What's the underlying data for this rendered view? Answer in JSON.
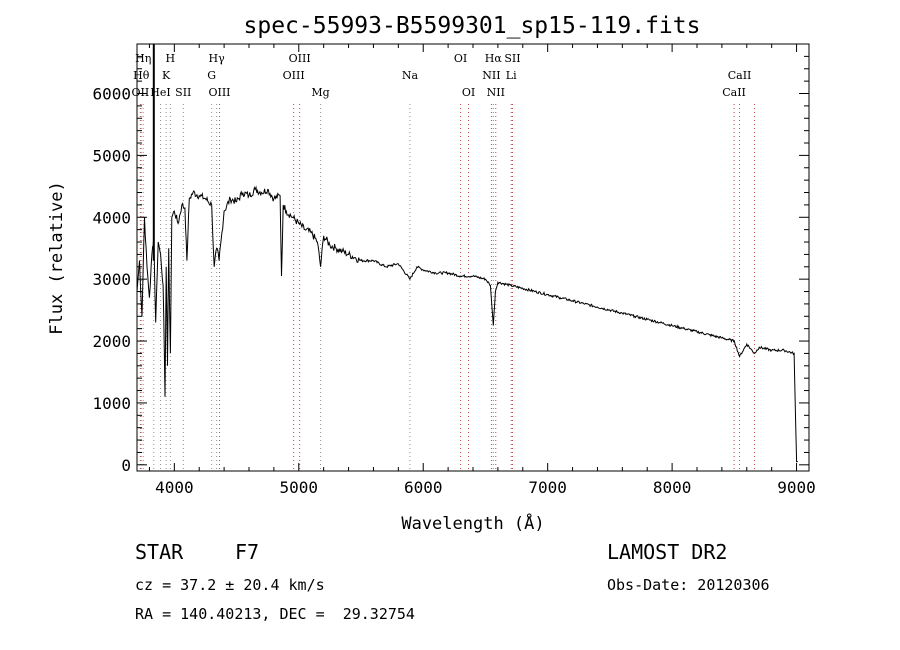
{
  "chart_data": {
    "type": "line",
    "title": "spec-55993-B5599301_sp15-119.fits",
    "xlabel": "Wavelength (Å)",
    "ylabel": "Flux (relative)",
    "xlim": [
      3700,
      9100
    ],
    "ylim": [
      -100,
      6800
    ],
    "xticks": [
      4000,
      5000,
      6000,
      7000,
      8000,
      9000
    ],
    "yticks": [
      0,
      1000,
      2000,
      3000,
      4000,
      5000,
      6000
    ],
    "grid": false,
    "series": [
      {
        "color": "#000000",
        "x": [
          3700,
          3720,
          3740,
          3760,
          3780,
          3800,
          3820,
          3835,
          3850,
          3870,
          3890,
          3910,
          3925,
          3935,
          3945,
          3955,
          3968,
          3980,
          4000,
          4030,
          4060,
          4085,
          4101,
          4120,
          4150,
          4200,
          4250,
          4300,
          4320,
          4340,
          4360,
          4400,
          4450,
          4500,
          4550,
          4600,
          4650,
          4700,
          4750,
          4800,
          4850,
          4861,
          4875,
          4900,
          4950,
          5000,
          5050,
          5100,
          5150,
          5175,
          5200,
          5250,
          5300,
          5350,
          5400,
          5450,
          5500,
          5600,
          5700,
          5800,
          5893,
          5950,
          6000,
          6100,
          6200,
          6300,
          6400,
          6500,
          6540,
          6563,
          6580,
          6600,
          6700,
          6800,
          6900,
          7000,
          7100,
          7200,
          7300,
          7400,
          7500,
          7600,
          7700,
          7800,
          7900,
          8000,
          8100,
          8200,
          8300,
          8400,
          8500,
          8542,
          8600,
          8662,
          8700,
          8800,
          8900,
          8980,
          9000,
          9010
        ],
        "y": [
          2800,
          3300,
          2400,
          4000,
          3200,
          2700,
          3400,
          3700,
          2300,
          3600,
          3400,
          2900,
          1100,
          3200,
          1600,
          3500,
          1800,
          4000,
          4100,
          3900,
          4200,
          4150,
          3300,
          4300,
          4400,
          4350,
          4300,
          4200,
          3200,
          3500,
          3300,
          4100,
          4300,
          4250,
          4400,
          4350,
          4450,
          4400,
          4450,
          4300,
          4350,
          3050,
          4200,
          4100,
          4000,
          3900,
          3800,
          3750,
          3600,
          3200,
          3700,
          3550,
          3500,
          3450,
          3400,
          3350,
          3300,
          3300,
          3200,
          3250,
          3000,
          3200,
          3150,
          3100,
          3100,
          3050,
          3050,
          3000,
          2900,
          2250,
          2800,
          2950,
          2900,
          2850,
          2800,
          2750,
          2700,
          2650,
          2600,
          2550,
          2500,
          2450,
          2400,
          2350,
          2300,
          2250,
          2200,
          2150,
          2100,
          2050,
          2000,
          1750,
          1950,
          1800,
          1900,
          1850,
          1850,
          1800,
          50,
          50
        ]
      }
    ],
    "line_marks": [
      {
        "wl": 3734,
        "label": "Hθ",
        "row": 2,
        "color": "#909090"
      },
      {
        "wl": 3727,
        "label": "OII",
        "row": 3,
        "color": "#cc4444"
      },
      {
        "wl": 3750,
        "label": "Hη",
        "row": 1,
        "color": "#909090"
      },
      {
        "wl": 3835,
        "label": "",
        "row": 0,
        "color": "#909090"
      },
      {
        "wl": 3889,
        "label": "HeI",
        "row": 3,
        "color": "#909090"
      },
      {
        "wl": 3934,
        "label": "K",
        "row": 2,
        "color": "#909090"
      },
      {
        "wl": 3968,
        "label": "H",
        "row": 1,
        "color": "#909090"
      },
      {
        "wl": 4072,
        "label": "SII",
        "row": 3,
        "color": "#909090"
      },
      {
        "wl": 4300,
        "label": "G",
        "row": 2,
        "color": "#909090"
      },
      {
        "wl": 4340,
        "label": "Hγ",
        "row": 1,
        "color": "#909090"
      },
      {
        "wl": 4363,
        "label": "OIII",
        "row": 3,
        "color": "#cc4444"
      },
      {
        "wl": 4959,
        "label": "OIII",
        "row": 2,
        "color": "#cc4444"
      },
      {
        "wl": 5007,
        "label": "OIII",
        "row": 1,
        "color": "#cc4444"
      },
      {
        "wl": 5175,
        "label": "Mg",
        "row": 3,
        "color": "#909090"
      },
      {
        "wl": 5893,
        "label": "Na",
        "row": 2,
        "color": "#909090"
      },
      {
        "wl": 6300,
        "label": "OI",
        "row": 1,
        "color": "#cc4444"
      },
      {
        "wl": 6364,
        "label": "OI",
        "row": 3,
        "color": "#cc4444"
      },
      {
        "wl": 6548,
        "label": "NII",
        "row": 2,
        "color": "#cc4444"
      },
      {
        "wl": 6563,
        "label": "Hα",
        "row": 1,
        "color": "#909090"
      },
      {
        "wl": 6583,
        "label": "NII",
        "row": 3,
        "color": "#cc4444"
      },
      {
        "wl": 6707,
        "label": "Li",
        "row": 2,
        "color": "#cc4444"
      },
      {
        "wl": 6717,
        "label": "SII",
        "row": 1,
        "color": "#cc4444"
      },
      {
        "wl": 8498,
        "label": "CaII",
        "row": 3,
        "color": "#cc4444"
      },
      {
        "wl": 8542,
        "label": "CaII",
        "row": 2,
        "color": "#cc4444"
      },
      {
        "wl": 8662,
        "label": "",
        "row": 0,
        "color": "#cc4444"
      }
    ]
  },
  "info": {
    "object_type": "STAR",
    "subclass": "F7",
    "survey": "LAMOST DR2",
    "redshift": "cz = 37.2 ± 20.4 km/s",
    "obs_date": "Obs-Date: 20120306",
    "coordinates": "RA = 140.40213, DEC =  29.32754"
  }
}
